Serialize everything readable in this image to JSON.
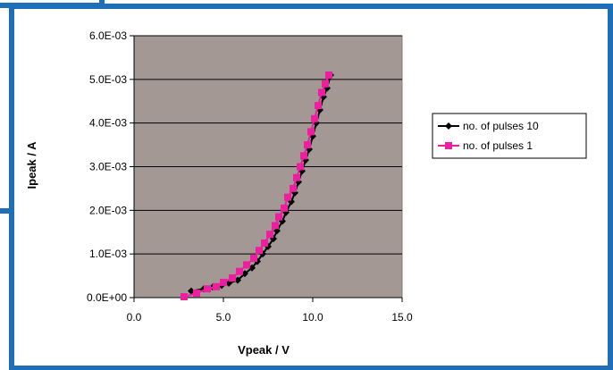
{
  "chart_data": {
    "type": "scatter",
    "xlabel": "Vpeak / V",
    "ylabel": "Ipeak / A",
    "xlim": [
      0,
      15
    ],
    "ylim": [
      0,
      0.006
    ],
    "x_ticks": [
      0,
      5,
      10,
      15
    ],
    "x_tick_labels": [
      "0.0",
      "5.0",
      "10.0",
      "15.0"
    ],
    "y_ticks": [
      0,
      0.001,
      0.002,
      0.003,
      0.004,
      0.005,
      0.006
    ],
    "y_tick_labels": [
      "0.0E+00",
      "1.0E-03",
      "2.0E-03",
      "3.0E-03",
      "4.0E-03",
      "5.0E-03",
      "6.0E-03"
    ],
    "grid": "horizontal",
    "plot_background": "#a39894",
    "legend_position": "right",
    "series": [
      {
        "name": "no. of pulses 10",
        "color": "#000000",
        "marker": "diamond",
        "x": [
          3.2,
          3.9,
          4.4,
          4.9,
          5.3,
          5.8,
          6.2,
          6.6,
          6.9,
          7.2,
          7.5,
          7.8,
          8.0,
          8.3,
          8.5,
          8.8,
          9.0,
          9.2,
          9.4,
          9.6,
          9.8,
          10.0,
          10.2,
          10.4,
          10.6,
          10.8,
          11.0
        ],
        "y": [
          0.00015,
          0.0002,
          0.00024,
          0.00028,
          0.00033,
          0.0004,
          0.00055,
          0.00068,
          0.00083,
          0.001,
          0.00117,
          0.00135,
          0.00153,
          0.00175,
          0.00195,
          0.0022,
          0.0024,
          0.00265,
          0.0029,
          0.00315,
          0.0034,
          0.0037,
          0.004,
          0.0043,
          0.0046,
          0.0048,
          0.0051
        ]
      },
      {
        "name": "no. of pulses 1",
        "color": "#ee1ea0",
        "marker": "square",
        "x": [
          2.8,
          3.5,
          4.1,
          4.6,
          5.0,
          5.5,
          5.9,
          6.3,
          6.7,
          7.0,
          7.3,
          7.6,
          7.9,
          8.1,
          8.4,
          8.6,
          8.9,
          9.1,
          9.3,
          9.5,
          9.7,
          9.9,
          10.1,
          10.3,
          10.5,
          10.7,
          10.9
        ],
        "y": [
          2e-05,
          0.0001,
          0.0002,
          0.00025,
          0.00035,
          0.00045,
          0.0006,
          0.00075,
          0.0009,
          0.00108,
          0.00125,
          0.00145,
          0.00165,
          0.00185,
          0.00205,
          0.0023,
          0.0025,
          0.00275,
          0.003,
          0.00325,
          0.0035,
          0.0038,
          0.0041,
          0.0044,
          0.0047,
          0.0049,
          0.0051
        ]
      }
    ]
  }
}
